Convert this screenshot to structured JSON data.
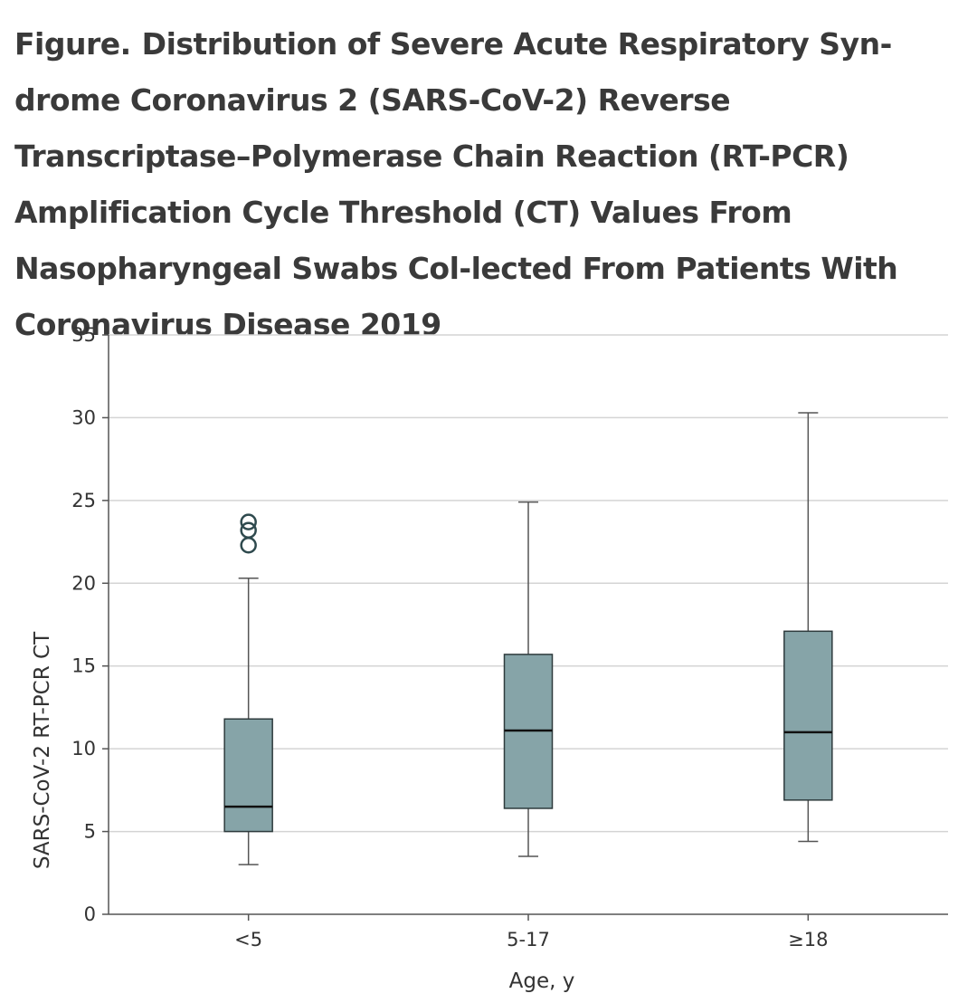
{
  "figure": {
    "label": "Figure.",
    "caption": "Distribution of Severe Acute Respiratory Syn-drome Coronavirus 2 (SARS-CoV-2) Reverse Transcriptase–Polymerase Chain Reaction (RT-PCR) Amplification Cycle Threshold (CT) Values From Nasopharyngeal Swabs Col-lected From Patients With Coronavirus Disease 2019"
  },
  "colors": {
    "box_fill": "#86a4a8",
    "box_stroke": "#2e3b3d",
    "median": "#111111",
    "whisker": "#555555",
    "grid": "#d4d4d4",
    "axis": "#555555",
    "outlier": "#2f4a4e"
  },
  "chart_data": {
    "type": "box",
    "title": "",
    "xlabel": "Age, y",
    "ylabel": "SARS-CoV-2 RT-PCR CT",
    "ylim": [
      0,
      35
    ],
    "yticks": [
      0,
      5,
      10,
      15,
      20,
      25,
      30,
      35
    ],
    "grid": true,
    "categories": [
      "<5",
      "5-17",
      "≥18"
    ],
    "boxes": [
      {
        "category": "<5",
        "whisker_low": 3.0,
        "q1": 5.0,
        "median": 6.5,
        "q3": 11.8,
        "whisker_high": 20.3,
        "outliers": [
          22.3,
          23.2,
          23.7
        ]
      },
      {
        "category": "5-17",
        "whisker_low": 3.5,
        "q1": 6.4,
        "median": 11.1,
        "q3": 15.7,
        "whisker_high": 24.9,
        "outliers": []
      },
      {
        "category": "≥18",
        "whisker_low": 4.4,
        "q1": 6.9,
        "median": 11.0,
        "q3": 17.1,
        "whisker_high": 30.3,
        "outliers": []
      }
    ]
  }
}
